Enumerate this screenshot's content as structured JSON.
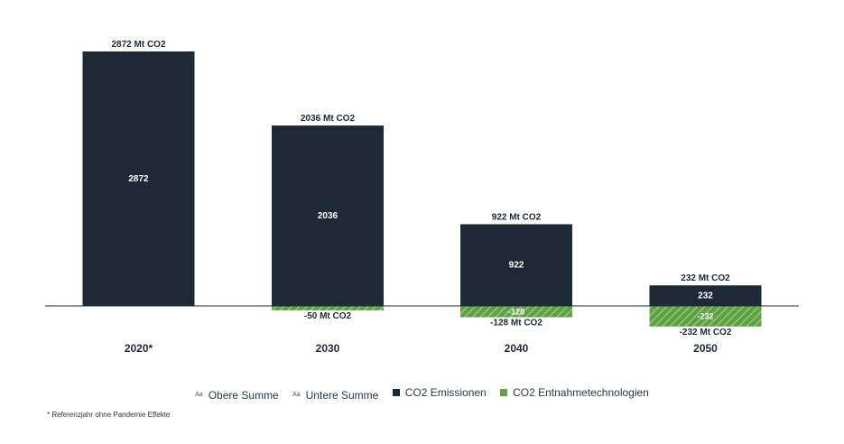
{
  "chart_data": {
    "type": "bar",
    "stacked": true,
    "categories": [
      "2020*",
      "2030",
      "2040",
      "2050"
    ],
    "series": [
      {
        "name": "CO2 Emissionen",
        "values": [
          2872,
          2036,
          922,
          232
        ],
        "color": "#1d2a35",
        "inner_labels": [
          "2872",
          "2036",
          "922",
          "232"
        ]
      },
      {
        "name": "CO2 Entnahmetechnologien",
        "values": [
          0,
          -50,
          -128,
          -232
        ],
        "color": "#5fa145",
        "pattern": "hatched",
        "inner_labels": [
          "",
          "",
          "-128",
          "-232"
        ]
      }
    ],
    "top_totals": [
      "2872 Mt CO2",
      "2036 Mt CO2",
      "922 Mt CO2",
      "232 Mt CO2"
    ],
    "bottom_totals": [
      "",
      "-50 Mt CO2",
      "-128 Mt CO2",
      "-232 Mt CO2"
    ],
    "ylim": [
      -232,
      2872
    ],
    "grid": false,
    "legend_position": "bottom"
  },
  "legend": [
    {
      "marker": "Aa",
      "label": "Obere Summe"
    },
    {
      "marker": "Aa",
      "label": "Untere Summe"
    },
    {
      "marker": "square",
      "color": "#1d2a35",
      "label": "CO2 Emissionen"
    },
    {
      "marker": "square",
      "color": "#5fa145",
      "label": "CO2 Entnahmetechnologien"
    }
  ],
  "footnote": "* Referenzjahr ohne Pandemie Effekte"
}
